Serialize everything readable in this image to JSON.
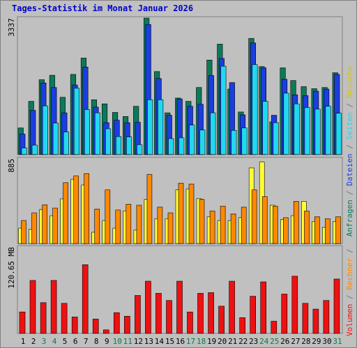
{
  "title": "Tages-Statistik im Monat Januar 2026",
  "colors": {
    "background": "#c0c0c0",
    "title": "#0000cc",
    "anfragen": "#0c7a5a",
    "dateien": "#1a3ee0",
    "seiten": "#22d8f0",
    "besuche": "#ffff33",
    "rechner": "#ff8800",
    "volumen": "#ee1111",
    "weekend_label": "#007f40",
    "weekday_label": "#000000"
  },
  "right_label": {
    "top": [
      {
        "text": "Anfragen",
        "color": "#0c7a5a"
      },
      {
        "text": " / ",
        "color": "#777777"
      },
      {
        "text": "Dateien",
        "color": "#1a3ee0"
      },
      {
        "text": " / ",
        "color": "#777777"
      },
      {
        "text": "Seiten",
        "color": "#22d8f0"
      },
      {
        "text": " / ",
        "color": "#777777"
      },
      {
        "text": "Besuche",
        "color": "#d6c800"
      }
    ],
    "bottom": [
      {
        "text": "Volumen",
        "color": "#ee1111"
      },
      {
        "text": " / ",
        "color": "#777777"
      },
      {
        "text": "Rechner",
        "color": "#ff8800"
      },
      {
        "text": " / ",
        "color": "#777777"
      }
    ]
  },
  "chart_data": [
    {
      "type": "bar",
      "panel": "top",
      "ymax_label": "3337",
      "ylim": [
        0,
        3337
      ],
      "categories": [
        "1",
        "2",
        "3",
        "4",
        "5",
        "6",
        "7",
        "8",
        "9",
        "10",
        "11",
        "12",
        "13",
        "14",
        "15",
        "16",
        "17",
        "18",
        "19",
        "20",
        "21",
        "22",
        "23",
        "24",
        "25",
        "26",
        "27",
        "28",
        "29",
        "30",
        "31"
      ],
      "series": [
        {
          "name": "Anfragen",
          "color": "#0c7a5a",
          "values": [
            650,
            1300,
            1830,
            1940,
            1400,
            1960,
            2360,
            1340,
            1240,
            1030,
            930,
            1180,
            3337,
            2030,
            1020,
            1380,
            1300,
            1640,
            2310,
            2700,
            1600,
            1040,
            2840,
            2150,
            800,
            2120,
            1810,
            1660,
            1610,
            1640,
            2000
          ]
        },
        {
          "name": "Dateien",
          "color": "#1a3ee0",
          "values": [
            500,
            1080,
            1750,
            1640,
            1020,
            1700,
            2140,
            1160,
            780,
            840,
            780,
            790,
            3180,
            1860,
            960,
            1360,
            1180,
            1230,
            1930,
            2350,
            1760,
            970,
            2730,
            2120,
            960,
            1840,
            1460,
            1440,
            1550,
            1600,
            1960
          ]
        },
        {
          "name": "Seiten",
          "color": "#22d8f0",
          "values": [
            160,
            230,
            1190,
            770,
            550,
            1620,
            1100,
            1020,
            630,
            440,
            430,
            240,
            1340,
            1340,
            390,
            410,
            720,
            600,
            1020,
            2160,
            590,
            650,
            2200,
            1300,
            780,
            1500,
            1240,
            1150,
            1110,
            1180,
            1010
          ]
        }
      ]
    },
    {
      "type": "bar",
      "panel": "middle",
      "ymax_label": "885",
      "ylim": [
        0,
        885
      ],
      "categories": [
        "1",
        "2",
        "3",
        "4",
        "5",
        "6",
        "7",
        "8",
        "9",
        "10",
        "11",
        "12",
        "13",
        "14",
        "15",
        "16",
        "17",
        "18",
        "19",
        "20",
        "21",
        "22",
        "23",
        "24",
        "25",
        "26",
        "27",
        "28",
        "29",
        "30",
        "31"
      ],
      "series": [
        {
          "name": "Besuche",
          "color": "#ffff33",
          "values": [
            160,
            150,
            355,
            290,
            465,
            670,
            610,
            120,
            240,
            160,
            340,
            140,
            460,
            260,
            260,
            560,
            570,
            470,
            280,
            240,
            240,
            270,
            790,
            850,
            400,
            250,
            290,
            440,
            230,
            170,
            230
          ]
        },
        {
          "name": "Rechner",
          "color": "#ff8800",
          "values": [
            240,
            320,
            405,
            370,
            635,
            705,
            730,
            360,
            560,
            350,
            410,
            400,
            720,
            380,
            320,
            630,
            620,
            460,
            340,
            390,
            310,
            380,
            560,
            490,
            390,
            270,
            440,
            340,
            280,
            260,
            280
          ]
        }
      ]
    },
    {
      "type": "bar",
      "panel": "bottom",
      "ymax_label": "120.65 MB",
      "ylim": [
        0,
        120.65
      ],
      "categories": [
        "1",
        "2",
        "3",
        "4",
        "5",
        "6",
        "7",
        "8",
        "9",
        "10",
        "11",
        "12",
        "13",
        "14",
        "15",
        "16",
        "17",
        "18",
        "19",
        "20",
        "21",
        "22",
        "23",
        "24",
        "25",
        "26",
        "27",
        "28",
        "29",
        "30",
        "31"
      ],
      "series": [
        {
          "name": "Volumen",
          "color": "#ee1111",
          "values": [
            30,
            74,
            43,
            74,
            42,
            23,
            96,
            20,
            5,
            29,
            24,
            53,
            73,
            56,
            46,
            73,
            30,
            56,
            57,
            38,
            73,
            22,
            52,
            72,
            17,
            55,
            80,
            42,
            34,
            46,
            76
          ]
        }
      ]
    }
  ],
  "x_labels": {
    "days": [
      "1",
      "2",
      "3",
      "4",
      "5",
      "6",
      "7",
      "8",
      "9",
      "10",
      "11",
      "12",
      "13",
      "14",
      "15",
      "16",
      "17",
      "18",
      "19",
      "20",
      "21",
      "22",
      "23",
      "24",
      "25",
      "26",
      "27",
      "28",
      "29",
      "30",
      "31"
    ],
    "weekend": [
      3,
      4,
      10,
      11,
      17,
      18,
      24,
      25,
      31
    ]
  }
}
